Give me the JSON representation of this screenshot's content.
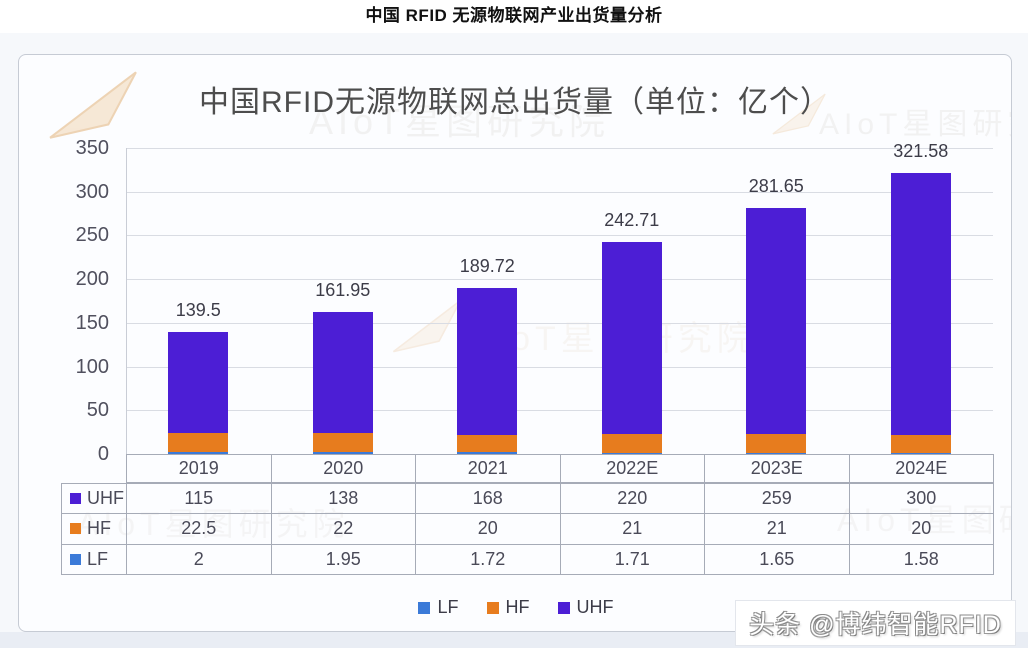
{
  "page": {
    "header_title": "中国 RFID 无源物联网产业出货量分析",
    "watermark_credit": "头条 @博纬智能RFID"
  },
  "watermarks": {
    "logo_text": "AIoT星图研究院"
  },
  "chart_data": {
    "type": "bar",
    "stacked": true,
    "title": "中国RFID无源物联网总出货量（单位：亿个）",
    "categories": [
      "2019",
      "2020",
      "2021",
      "2022E",
      "2023E",
      "2024E"
    ],
    "series": [
      {
        "name": "LF",
        "color": "#3b7ad8",
        "values": [
          2,
          1.95,
          1.72,
          1.71,
          1.65,
          1.58
        ]
      },
      {
        "name": "HF",
        "color": "#e77c1e",
        "values": [
          22.5,
          22,
          20,
          21,
          21,
          20
        ]
      },
      {
        "name": "UHF",
        "color": "#4c1ed5",
        "values": [
          115,
          138,
          168,
          220,
          259,
          300
        ]
      }
    ],
    "totals": [
      "139.5",
      "161.95",
      "189.72",
      "242.71",
      "281.65",
      "321.58"
    ],
    "ylim": [
      0,
      350
    ],
    "yticks": [
      0,
      50,
      100,
      150,
      200,
      250,
      300,
      350
    ],
    "grid": true,
    "legend": [
      "LF",
      "HF",
      "UHF"
    ],
    "legend_position": "bottom",
    "data_table": {
      "columns": [
        "2019",
        "2020",
        "2021",
        "2022E",
        "2023E",
        "2024E"
      ],
      "rows": [
        {
          "label": "UHF",
          "values": [
            "115",
            "138",
            "168",
            "220",
            "259",
            "300"
          ]
        },
        {
          "label": "HF",
          "values": [
            "22.5",
            "22",
            "20",
            "21",
            "21",
            "20"
          ]
        },
        {
          "label": "LF",
          "values": [
            "2",
            "1.95",
            "1.72",
            "1.71",
            "1.65",
            "1.58"
          ]
        }
      ]
    }
  }
}
